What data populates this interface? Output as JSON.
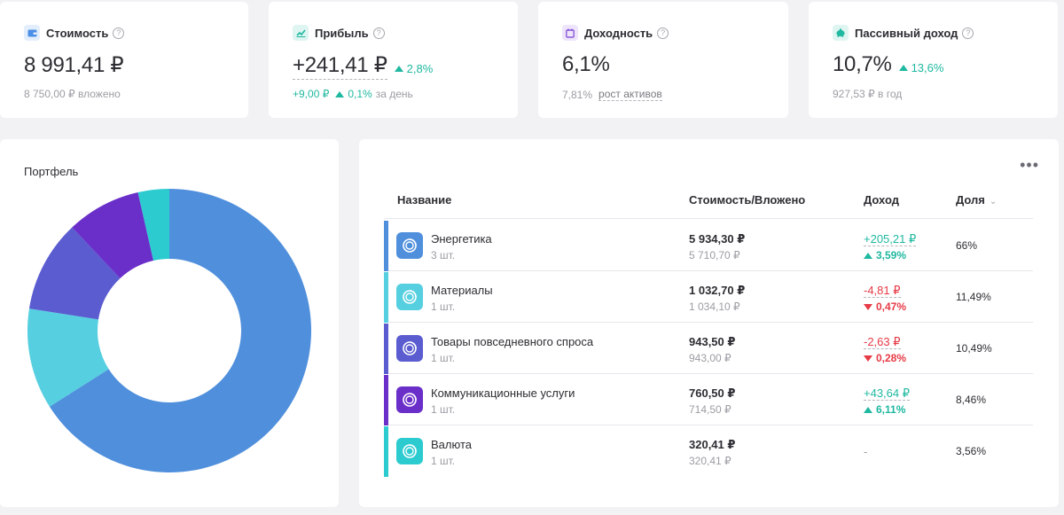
{
  "stats": [
    {
      "title": "Стоимость",
      "value": "8 991,41 ₽",
      "sub": "8 750,00 ₽ вложено",
      "icon": "wallet-icon",
      "icon_color": "#4b8fe6",
      "icon_bg": "#e3eefc"
    },
    {
      "title": "Прибыль",
      "value": "+241,41 ₽",
      "change": "2,8%",
      "sub_value": "+9,00 ₽",
      "sub_change": "0,1%",
      "sub_label": "за день",
      "icon": "chart-line-icon",
      "icon_color": "#1fb8a0",
      "icon_bg": "#dff5f1"
    },
    {
      "title": "Доходность",
      "value": "6,1%",
      "sub_value": "7,81%",
      "sub_label": "рост активов",
      "icon": "calendar-icon",
      "icon_color": "#8a5ad8",
      "icon_bg": "#eee5fb"
    },
    {
      "title": "Пассивный доход",
      "value": "10,7%",
      "change": "13,6%",
      "sub": "927,53 ₽ в год",
      "icon": "piggy-bank-icon",
      "icon_color": "#1fb8a0",
      "icon_bg": "#dff5f1"
    }
  ],
  "help_glyph": "?",
  "portfolio": {
    "title": "Портфель"
  },
  "table": {
    "more_glyph": "•••",
    "headers": {
      "name": "Название",
      "value": "Стоимость/Вложено",
      "income": "Доход",
      "share": "Доля"
    },
    "rows": [
      {
        "name": "Энергетика",
        "qty": "3 шт.",
        "value": "5 934,30 ₽",
        "invested": "5 710,70 ₽",
        "income": "+205,21 ₽",
        "income_pct": "3,59%",
        "direction": "up",
        "share": "66%",
        "color": "#4f8fdc"
      },
      {
        "name": "Материалы",
        "qty": "1 шт.",
        "value": "1 032,70 ₽",
        "invested": "1 034,10 ₽",
        "income": "-4,81 ₽",
        "income_pct": "0,47%",
        "direction": "down",
        "share": "11,49%",
        "color": "#56cfe0"
      },
      {
        "name": "Товары повседневного спроса",
        "qty": "1 шт.",
        "value": "943,50 ₽",
        "invested": "943,00 ₽",
        "income": "-2,63 ₽",
        "income_pct": "0,28%",
        "direction": "down",
        "share": "10,49%",
        "color": "#5a5cd0"
      },
      {
        "name": "Коммуникационные услуги",
        "qty": "1 шт.",
        "value": "760,50 ₽",
        "invested": "714,50 ₽",
        "income": "+43,64 ₽",
        "income_pct": "6,11%",
        "direction": "up",
        "share": "8,46%",
        "color": "#6a2ec9"
      },
      {
        "name": "Валюта",
        "qty": "1 шт.",
        "value": "320,41 ₽",
        "invested": "320,41 ₽",
        "income": "-",
        "income_pct": "",
        "direction": "none",
        "share": "3,56%",
        "color": "#2ccbd0"
      }
    ]
  },
  "chart_data": {
    "type": "pie",
    "donut": true,
    "categories": [
      "Энергетика",
      "Материалы",
      "Товары повседневного спроса",
      "Коммуникационные услуги",
      "Валюта"
    ],
    "values": [
      66,
      11.49,
      10.49,
      8.46,
      3.56
    ],
    "colors": [
      "#4f8fdc",
      "#56cfe0",
      "#5a5cd0",
      "#6a2ec9",
      "#2ccbd0"
    ]
  }
}
